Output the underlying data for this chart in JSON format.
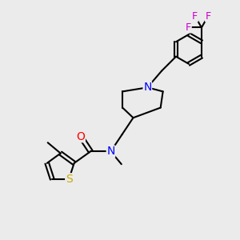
{
  "bg_color": "#ebebeb",
  "atom_colors": {
    "N": "#0000ff",
    "O": "#ff0000",
    "S": "#ccaa00",
    "F": "#cc00cc",
    "C": "#000000"
  },
  "bond_color": "#000000",
  "bond_width": 1.5,
  "font_size_atom": 10,
  "figsize": [
    3.0,
    3.0
  ],
  "dpi": 100
}
